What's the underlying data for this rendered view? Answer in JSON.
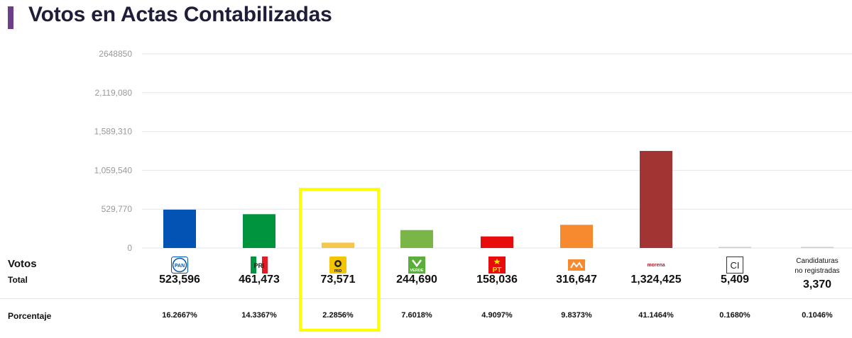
{
  "title": "Votos en Actas Contabilizadas",
  "labels": {
    "votos": "Votos",
    "total": "Total",
    "porcentaje": "Porcentaje"
  },
  "chart_data": {
    "type": "bar",
    "title": "Votos en Actas Contabilizadas",
    "ylim": [
      0,
      2648850
    ],
    "yticks": [
      "0",
      "529,770",
      "1,059,540",
      "1,589,310",
      "2,119,080",
      "2648850"
    ],
    "ytick_values": [
      0,
      529770,
      1059540,
      1589310,
      2119080,
      2648850
    ],
    "grid": true,
    "categories": [
      "PAN",
      "PRI",
      "PRD",
      "VERDE",
      "PT",
      "MC",
      "morena",
      "CI",
      "Candidaturas no registradas"
    ],
    "values": [
      523596,
      461473,
      73571,
      244690,
      158036,
      316647,
      1324425,
      5409,
      3370
    ],
    "colors": [
      "#0353b5",
      "#00943f",
      "#f5c74a",
      "#7ab548",
      "#e80c0c",
      "#f7892f",
      "#a33434",
      "#cccccc",
      "#cccccc"
    ],
    "highlighted": "PRD"
  },
  "parties": [
    {
      "id": "PAN",
      "logo": "pan-logo",
      "total": "523,596",
      "percent": "16.2667%"
    },
    {
      "id": "PRI",
      "logo": "pri-logo",
      "total": "461,473",
      "percent": "14.3367%"
    },
    {
      "id": "PRD",
      "logo": "prd-logo",
      "total": "73,571",
      "percent": "2.2856%"
    },
    {
      "id": "VERDE",
      "logo": "verde-logo",
      "total": "244,690",
      "percent": "7.6018%"
    },
    {
      "id": "PT",
      "logo": "pt-logo",
      "total": "158,036",
      "percent": "4.9097%"
    },
    {
      "id": "MC",
      "logo": "mc-logo",
      "total": "316,647",
      "percent": "9.8373%"
    },
    {
      "id": "morena",
      "logo": "morena-logo",
      "total": "1,324,425",
      "percent": "41.1464%"
    },
    {
      "id": "CI",
      "logo": "ci-logo",
      "total": "5,409",
      "percent": "0.1680%"
    },
    {
      "id": "Candidaturas no registradas",
      "logo": "",
      "label_line1": "Candidaturas",
      "label_line2": "no registradas",
      "total": "3,370",
      "percent": "0.1046%"
    }
  ],
  "logo_text": {
    "pan": "PAN",
    "pri": "PRI",
    "prd": "PRD",
    "verde": "VERDE",
    "pt": "PT",
    "morena": "morena",
    "ci": "CI"
  }
}
